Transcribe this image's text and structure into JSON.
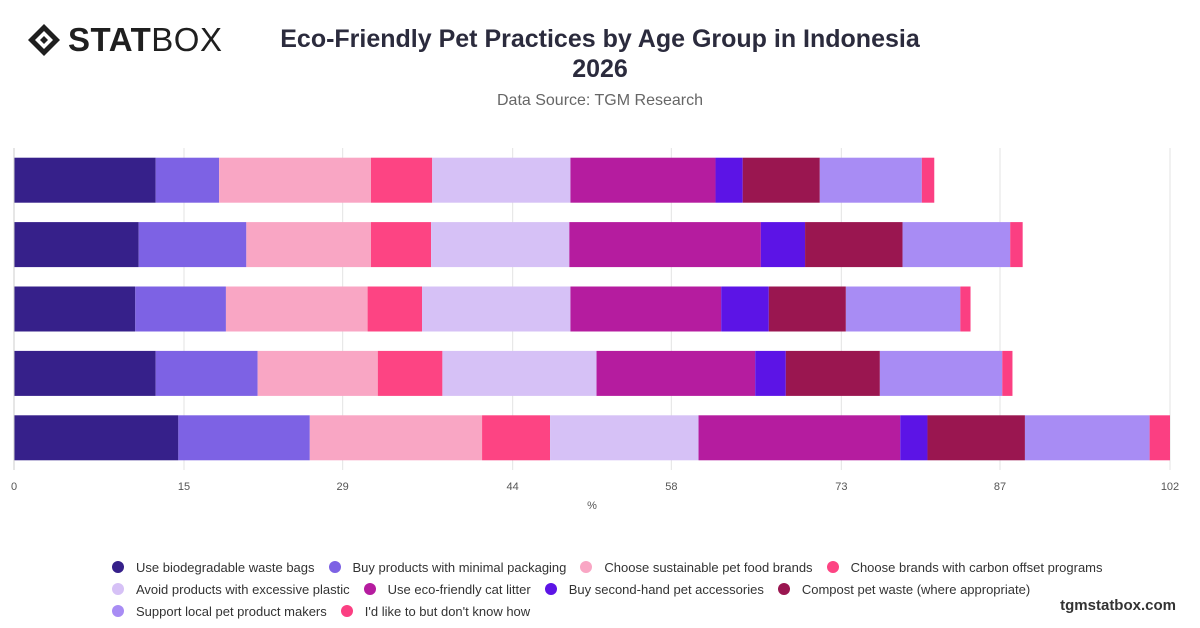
{
  "brand": {
    "name_bold": "STAT",
    "name_light": "BOX"
  },
  "title_line1": "Eco-Friendly Pet Practices by Age Group in Indonesia",
  "title_line2": "2026",
  "subtitle": "Data Source: TGM Research",
  "footer": "tgmstatbox.com",
  "colors": {
    "grid": "#e3e3e3",
    "axis_text": "#555555",
    "series": [
      "#36208a",
      "#7d62e4",
      "#f9a6c4",
      "#fd4483",
      "#d6c1f6",
      "#b51c9f",
      "#5c14e6",
      "#9a1650",
      "#a88cf4",
      "#fb3f82"
    ]
  },
  "chart_data": {
    "type": "bar",
    "orientation": "horizontal",
    "stacked": true,
    "title": "Eco-Friendly Pet Practices by Age Group in Indonesia 2026",
    "xlabel": "%",
    "ylabel": "",
    "xlim": [
      0,
      102
    ],
    "x_ticks": [
      0,
      15,
      29,
      44,
      58,
      73,
      87,
      102
    ],
    "grid": true,
    "legend_position": "bottom",
    "categories": [
      "",
      "",
      "",
      "",
      ""
    ],
    "series": [
      {
        "name": "Use biodegradable waste bags",
        "values": [
          12.5,
          11,
          10.7,
          12.5,
          14.5
        ]
      },
      {
        "name": "Buy products with minimal packaging",
        "values": [
          5.6,
          9.5,
          8.0,
          9.0,
          11.6
        ]
      },
      {
        "name": "Choose sustainable pet food brands",
        "values": [
          13.4,
          11.0,
          12.5,
          10.6,
          15.2
        ]
      },
      {
        "name": "Choose brands with carbon offset programs",
        "values": [
          5.4,
          5.3,
          4.8,
          5.7,
          6.0
        ]
      },
      {
        "name": "Avoid products with excessive plastic",
        "values": [
          12.2,
          12.2,
          13.1,
          13.6,
          13.1
        ]
      },
      {
        "name": "Use eco-friendly cat litter",
        "values": [
          12.8,
          16.9,
          13.3,
          14.0,
          17.8
        ]
      },
      {
        "name": "Buy second-hand pet accessories",
        "values": [
          2.4,
          3.9,
          4.2,
          2.7,
          2.4
        ]
      },
      {
        "name": "Compost pet waste (where appropriate)",
        "values": [
          6.8,
          8.6,
          6.8,
          8.3,
          8.6
        ]
      },
      {
        "name": "Support local pet product makers",
        "values": [
          9.0,
          9.5,
          10.1,
          10.8,
          11.0
        ]
      },
      {
        "name": "I'd like to but don't know how",
        "values": [
          1.1,
          1.1,
          0.9,
          0.9,
          1.8
        ]
      }
    ]
  }
}
